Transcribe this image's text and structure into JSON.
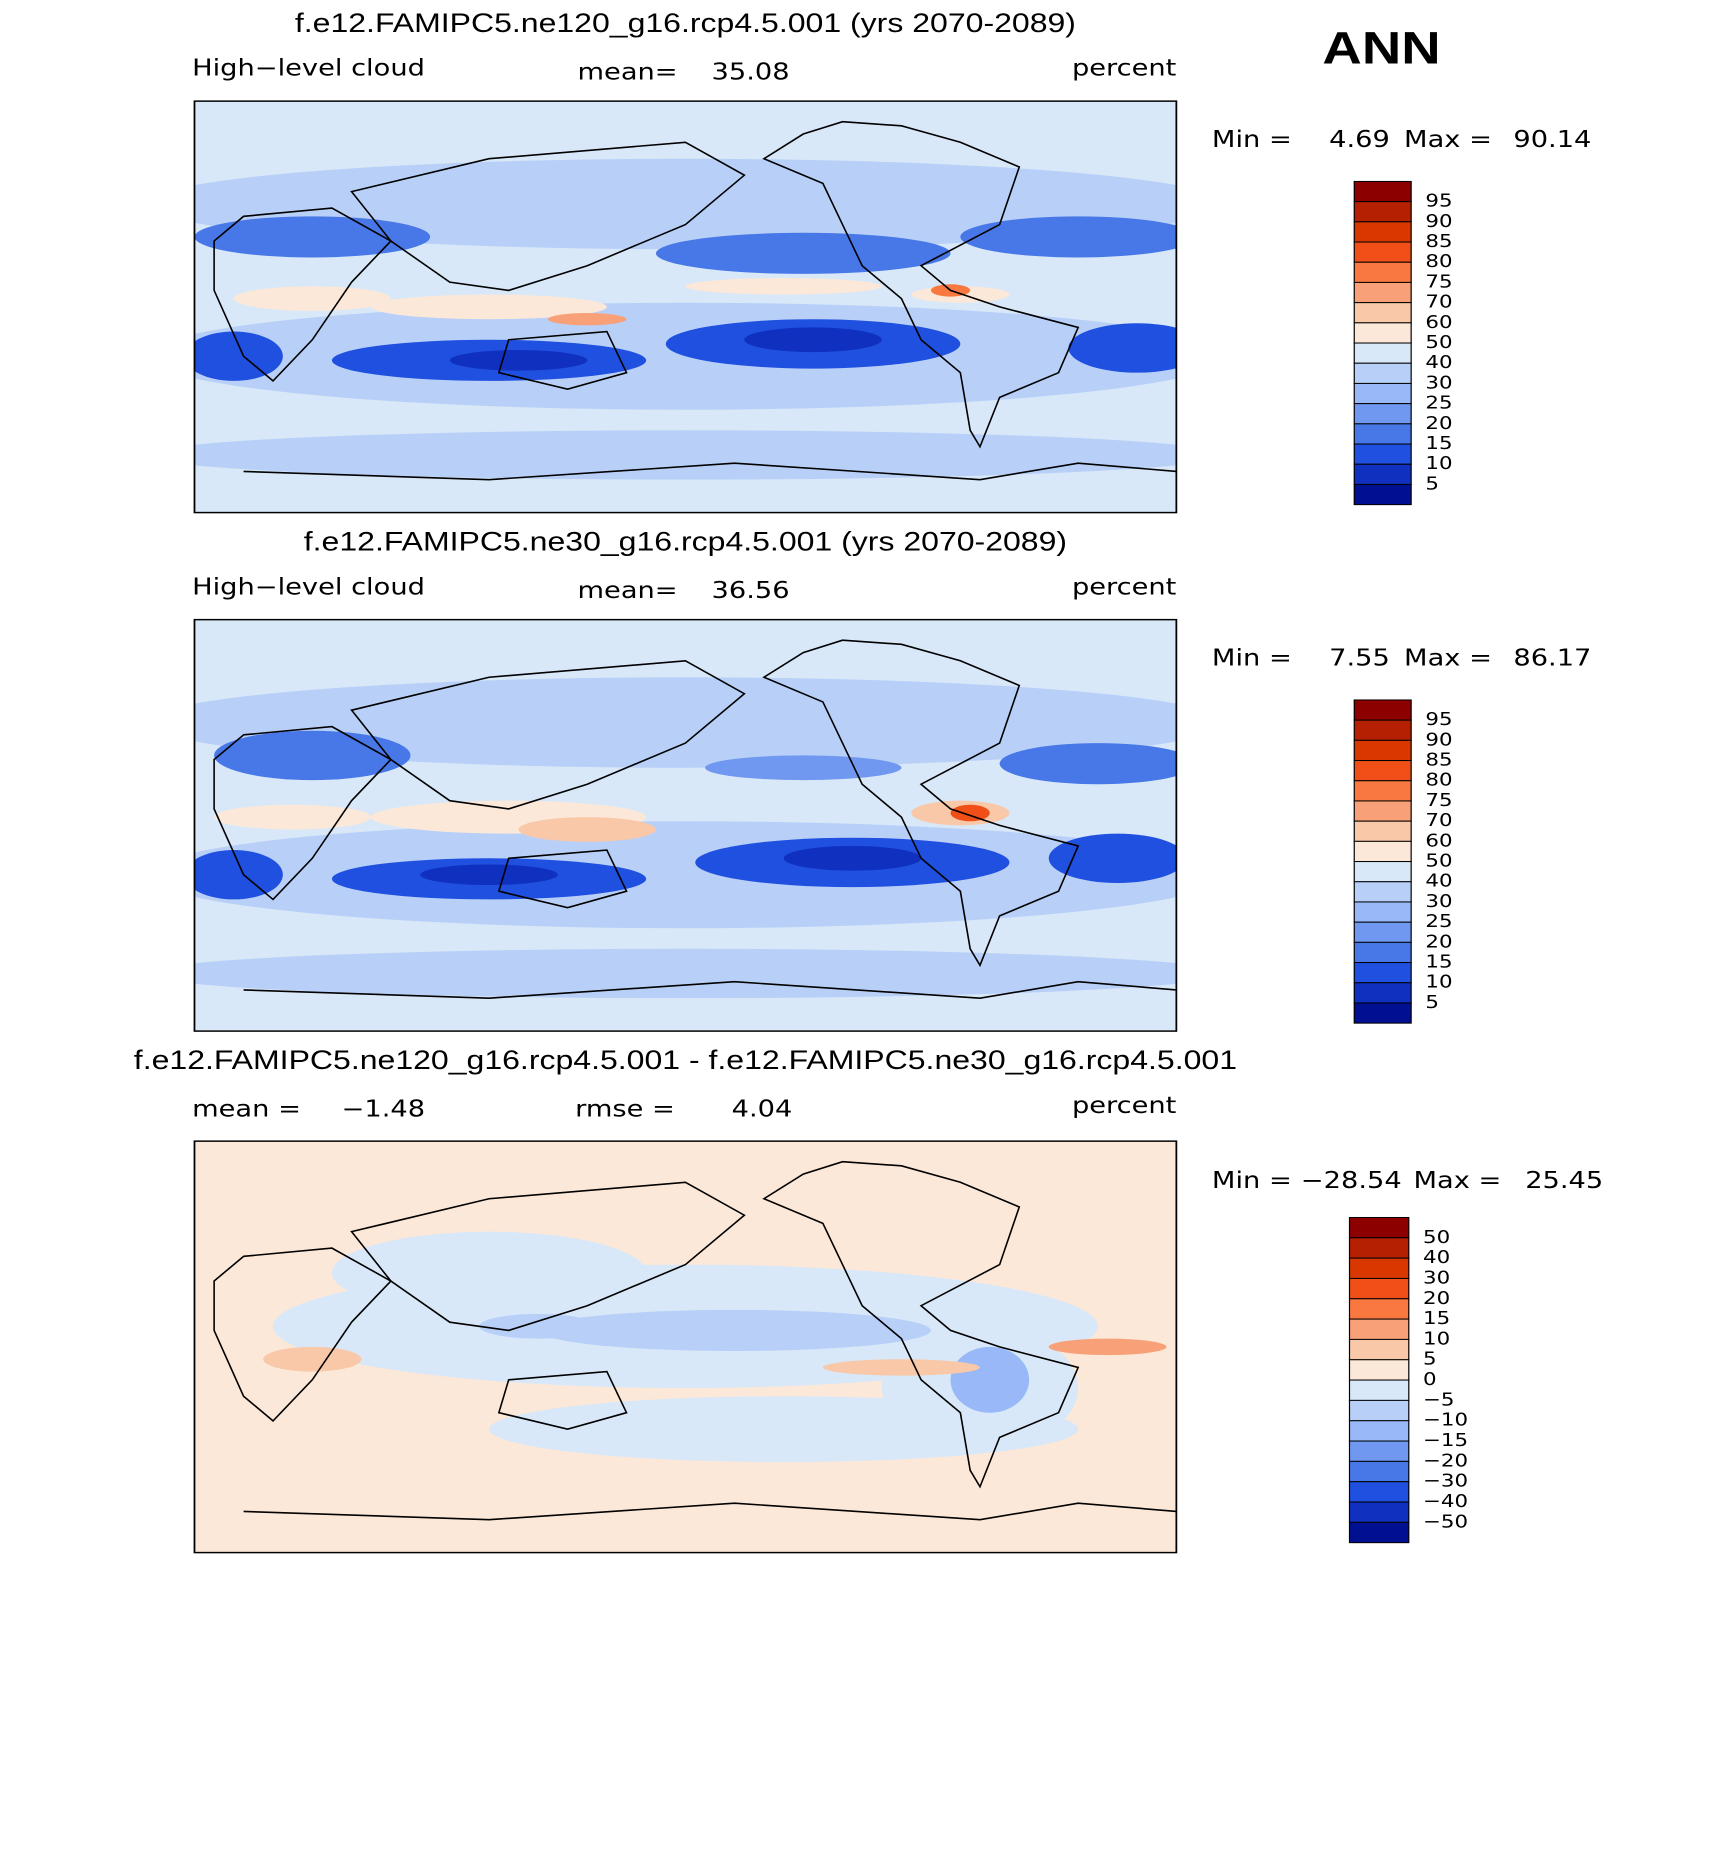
{
  "header": {
    "season": "ANN"
  },
  "chart_data": [
    {
      "type": "contour-map",
      "title": "f.e12.FAMIPC5.ne120_g16.rcp4.5.001 (yrs 2070-2089)",
      "field_label": "High−level cloud",
      "mean_label": "mean=",
      "mean": 35.08,
      "units": "percent",
      "min_label": "Min =",
      "min": 4.69,
      "max_label": "Max =",
      "max": 90.14,
      "levels": [
        95,
        90,
        85,
        80,
        75,
        70,
        60,
        50,
        40,
        30,
        25,
        20,
        15,
        10,
        5
      ],
      "colors": [
        "#8c0000",
        "#b42000",
        "#d83800",
        "#f05018",
        "#f87840",
        "#f8a078",
        "#f8c8a8",
        "#fce8d8",
        "#d8e8f8",
        "#b8d0f8",
        "#98b8f8",
        "#7098f0",
        "#4878e8",
        "#2050e0",
        "#1030c0",
        "#001090"
      ]
    },
    {
      "type": "contour-map",
      "title": "f.e12.FAMIPC5.ne30_g16.rcp4.5.001 (yrs 2070-2089)",
      "field_label": "High−level cloud",
      "mean_label": "mean=",
      "mean": 36.56,
      "units": "percent",
      "min_label": "Min =",
      "min": 7.55,
      "max_label": "Max =",
      "max": 86.17,
      "levels": [
        95,
        90,
        85,
        80,
        75,
        70,
        60,
        50,
        40,
        30,
        25,
        20,
        15,
        10,
        5
      ],
      "colors": [
        "#8c0000",
        "#b42000",
        "#d83800",
        "#f05018",
        "#f87840",
        "#f8a078",
        "#f8c8a8",
        "#fce8d8",
        "#d8e8f8",
        "#b8d0f8",
        "#98b8f8",
        "#7098f0",
        "#4878e8",
        "#2050e0",
        "#1030c0",
        "#001090"
      ]
    },
    {
      "type": "difference-map",
      "title": "f.e12.FAMIPC5.ne120_g16.rcp4.5.001 - f.e12.FAMIPC5.ne30_g16.rcp4.5.001",
      "mean_label": "mean =",
      "mean": {
        "value": -1.48,
        "label": "−1.48"
      },
      "rmse_label": "rmse =",
      "rmse": 4.04,
      "units": "percent",
      "min_label": "Min =",
      "min": {
        "value": -28.54,
        "label": "−28.54"
      },
      "max_label": "Max =",
      "max": 25.45,
      "levels": [
        50,
        40,
        30,
        20,
        15,
        10,
        5,
        0,
        {
          "value": -5,
          "label": "−5"
        },
        {
          "value": -10,
          "label": "−10"
        },
        {
          "value": -15,
          "label": "−15"
        },
        {
          "value": -20,
          "label": "−20"
        },
        {
          "value": -30,
          "label": "−30"
        },
        {
          "value": -40,
          "label": "−40"
        },
        {
          "value": -50,
          "label": "−50"
        }
      ],
      "colors": [
        "#8c0000",
        "#b42000",
        "#d83800",
        "#f05018",
        "#f87840",
        "#f8a078",
        "#f8c8a8",
        "#fce8d8",
        "#d8e8f8",
        "#b8d0f8",
        "#98b8f8",
        "#7098f0",
        "#4878e8",
        "#2050e0",
        "#1030c0",
        "#001090"
      ]
    }
  ]
}
